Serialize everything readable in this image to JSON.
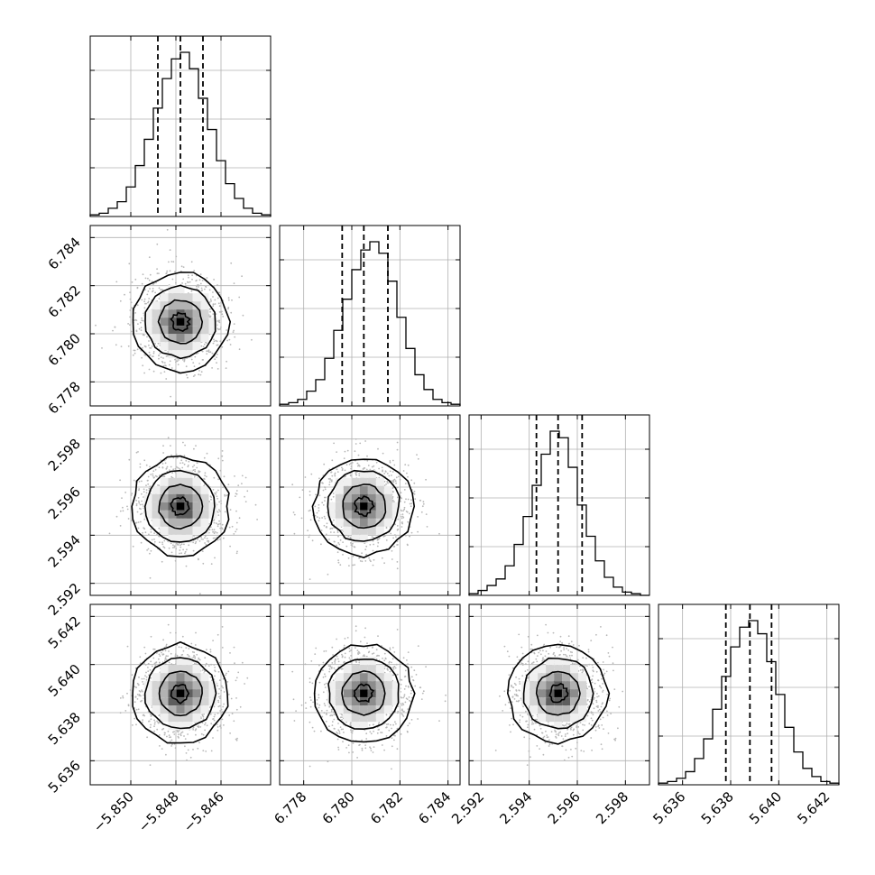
{
  "chart_data": {
    "type": "corner",
    "grid": true,
    "parameters": [
      {
        "median": -5.8478,
        "q16": -5.8488,
        "q84": -5.8468,
        "range": [
          -5.8518,
          -5.8438
        ],
        "ticks": [
          -5.85,
          -5.848,
          -5.846
        ],
        "tick_labels": [
          "−5.850",
          "−5.848",
          "−5.846"
        ],
        "hist_counts": [
          1,
          2,
          5,
          9,
          18,
          31,
          47,
          66,
          84,
          96,
          100,
          90,
          72,
          53,
          34,
          20,
          11,
          5,
          2,
          1
        ]
      },
      {
        "median": 6.7805,
        "q16": 6.7796,
        "q84": 6.7815,
        "range": [
          6.777,
          6.7845
        ],
        "ticks": [
          6.778,
          6.78,
          6.782,
          6.784
        ],
        "tick_labels": [
          "6.778",
          "6.780",
          "6.782",
          "6.784"
        ],
        "hist_counts": [
          1,
          2,
          4,
          9,
          16,
          29,
          46,
          65,
          83,
          95,
          100,
          93,
          76,
          54,
          35,
          19,
          10,
          4,
          2,
          1
        ]
      },
      {
        "median": 2.5952,
        "q16": 2.5943,
        "q84": 2.5962,
        "range": [
          2.5915,
          2.599
        ],
        "ticks": [
          2.592,
          2.594,
          2.596,
          2.598
        ],
        "tick_labels": [
          "2.592",
          "2.594",
          "2.596",
          "2.598"
        ],
        "hist_counts": [
          1,
          3,
          6,
          10,
          18,
          31,
          48,
          67,
          86,
          100,
          96,
          78,
          55,
          36,
          21,
          11,
          5,
          2,
          1,
          0
        ]
      },
      {
        "median": 5.6388,
        "q16": 5.6378,
        "q84": 5.6397,
        "range": [
          5.635,
          5.6425
        ],
        "ticks": [
          5.636,
          5.638,
          5.64,
          5.642
        ],
        "tick_labels": [
          "5.636",
          "5.638",
          "5.640",
          "5.642"
        ],
        "hist_counts": [
          1,
          2,
          4,
          8,
          16,
          28,
          46,
          66,
          84,
          96,
          100,
          92,
          75,
          55,
          35,
          20,
          10,
          5,
          2,
          1
        ]
      }
    ]
  }
}
